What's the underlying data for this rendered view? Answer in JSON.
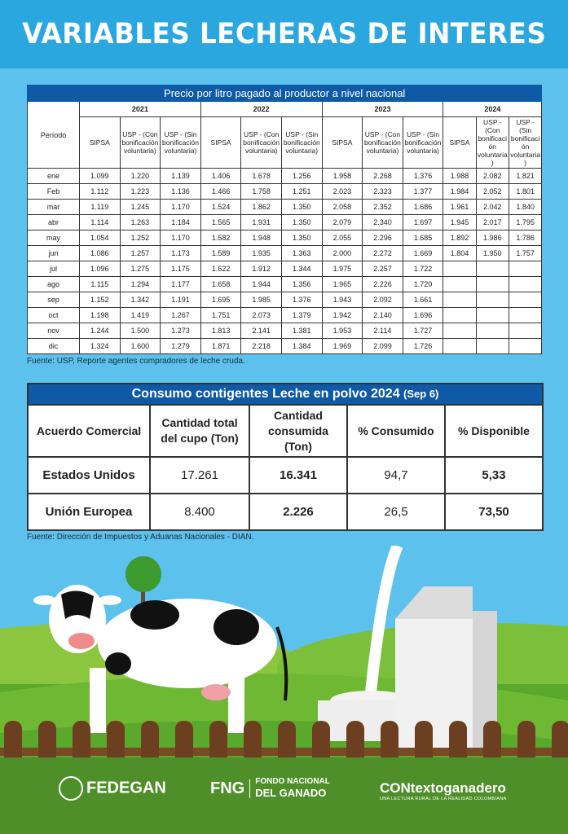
{
  "title": "VARIABLES LECHERAS DE INTERES",
  "price_table": {
    "title": "Precio por litro pagado al productor a nivel nacional",
    "period_header": "Período",
    "years": [
      "2021",
      "2022",
      "2023",
      "2024"
    ],
    "subheaders": [
      "SIPSA",
      "USP - (Con bonificación voluntaria)",
      "USP - (Sin bonificación voluntaria)"
    ],
    "rows": [
      {
        "month": "ene",
        "values": [
          "1.099",
          "1.220",
          "1.139",
          "1.406",
          "1.678",
          "1.256",
          "1.958",
          "2.268",
          "1.376",
          "1.988",
          "2.082",
          "1.821"
        ]
      },
      {
        "month": "Feb",
        "values": [
          "1.112",
          "1.223",
          "1.136",
          "1.466",
          "1.758",
          "1.251",
          "2.023",
          "2.323",
          "1.377",
          "1.984",
          "2.052",
          "1.801"
        ]
      },
      {
        "month": "mar",
        "values": [
          "1.119",
          "1.245",
          "1.170",
          "1.524",
          "1.862",
          "1.350",
          "2.058",
          "2.352",
          "1.686",
          "1.961",
          "2.042",
          "1.840"
        ]
      },
      {
        "month": "abr",
        "values": [
          "1.114",
          "1.263",
          "1.184",
          "1.565",
          "1.931",
          "1.350",
          "2.079",
          "2.340",
          "1.697",
          "1.945",
          "2.017",
          "1.795"
        ]
      },
      {
        "month": "may",
        "values": [
          "1.054",
          "1.252",
          "1.170",
          "1.582",
          "1.948",
          "1.350",
          "2.055",
          "2.296",
          "1.685",
          "1.892",
          "1.986",
          "1.786"
        ]
      },
      {
        "month": "jun",
        "values": [
          "1.086",
          "1.257",
          "1.173",
          "1.589",
          "1.935",
          "1.363",
          "2.000",
          "2.272",
          "1.669",
          "1.804",
          "1.950",
          "1.757"
        ]
      },
      {
        "month": "jul",
        "values": [
          "1.096",
          "1.275",
          "1.175",
          "1.622",
          "1.912",
          "1.344",
          "1.975",
          "2.257",
          "1.722",
          "",
          "",
          ""
        ]
      },
      {
        "month": "ago",
        "values": [
          "1.115",
          "1.294",
          "1.177",
          "1.658",
          "1.944",
          "1.356",
          "1.965",
          "2.226",
          "1.720",
          "",
          "",
          ""
        ]
      },
      {
        "month": "sep",
        "values": [
          "1.152",
          "1.342",
          "1.191",
          "1.695",
          "1.985",
          "1.376",
          "1.943",
          "2.092",
          "1.661",
          "",
          "",
          ""
        ]
      },
      {
        "month": "oct",
        "values": [
          "1.198",
          "1.419",
          "1.267",
          "1.751",
          "2.073",
          "1.379",
          "1.942",
          "2.140",
          "1.696",
          "",
          "",
          ""
        ]
      },
      {
        "month": "nov",
        "values": [
          "1.244",
          "1.500",
          "1.273",
          "1.813",
          "2.141",
          "1.381",
          "1.953",
          "2.114",
          "1.727",
          "",
          "",
          ""
        ]
      },
      {
        "month": "dic",
        "values": [
          "1.324",
          "1.600",
          "1.279",
          "1.871",
          "2.218",
          "1.384",
          "1.969",
          "2.099",
          "1.726",
          "",
          "",
          ""
        ]
      }
    ],
    "source": "Fuente: USP, Reporte agentes compradores de leche cruda."
  },
  "consumption_table": {
    "title": "Consumo contigentes Leche en polvo 2024",
    "title_note": "(Sep 6)",
    "headers": [
      "Acuerdo Comercial",
      "Cantidad total del cupo (Ton)",
      "Cantidad consumida (Ton)",
      "% Consumido",
      "% Disponible"
    ],
    "rows": [
      {
        "agreement": "Estados Unidos",
        "total": "17.261",
        "consumed": "16.341",
        "pct_consumed": "94,7",
        "pct_available": "5,33"
      },
      {
        "agreement": "Unión Europea",
        "total": "8.400",
        "consumed": "2.226",
        "pct_consumed": "26,5",
        "pct_available": "73,50"
      }
    ],
    "source": "Fuente: Dirección de Impuestos y Aduanas Nacionales - DIAN."
  },
  "logos": {
    "fedegan": "FEDEGAN",
    "fng_short": "FNG",
    "fng_line1": "FONDO NACIONAL",
    "fng_line2": "DEL GANADO",
    "contexto": "CONtextoganadero",
    "contexto_tagline": "UNA LECTURA RURAL DE LA REALIDAD COLOMBIANA"
  },
  "colors": {
    "header": "#2aa7df",
    "background": "#5cc1ec",
    "table_title": "#0e5aa7"
  }
}
